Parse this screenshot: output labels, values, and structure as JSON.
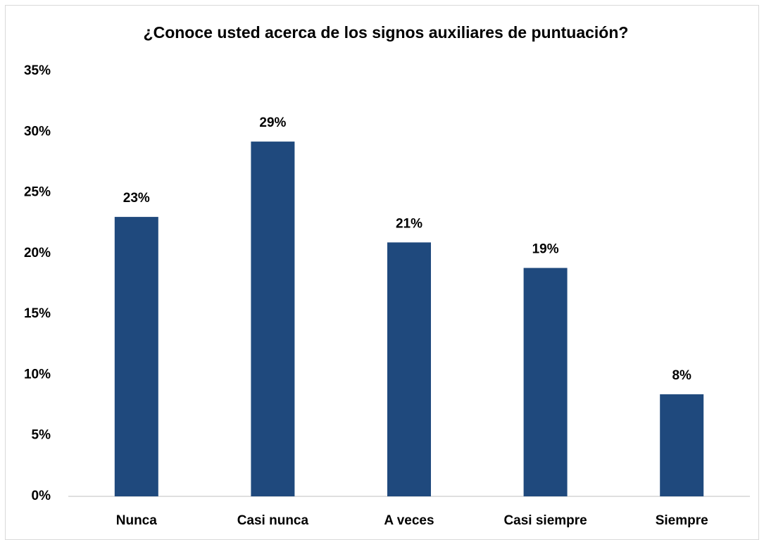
{
  "chart_data": {
    "type": "bar",
    "title": "¿Conoce usted acerca de los signos auxiliares de puntuación?",
    "categories": [
      "Nunca",
      "Casi nunca",
      "A veces",
      "Casi siempre",
      "Siempre"
    ],
    "values": [
      23,
      29.2,
      20.9,
      18.8,
      8.4
    ],
    "value_labels": [
      "23%",
      "29%",
      "21%",
      "19%",
      "8%"
    ],
    "color": "#1f497d",
    "ylim": [
      0,
      35
    ],
    "yticks": [
      {
        "value": 0,
        "label": "0%"
      },
      {
        "value": 5,
        "label": "5%"
      },
      {
        "value": 10,
        "label": "10%"
      },
      {
        "value": 15,
        "label": "15%"
      },
      {
        "value": 20,
        "label": "20%"
      },
      {
        "value": 25,
        "label": "25%"
      },
      {
        "value": 30,
        "label": "30%"
      },
      {
        "value": 35,
        "label": "35%"
      }
    ],
    "grid": false
  }
}
